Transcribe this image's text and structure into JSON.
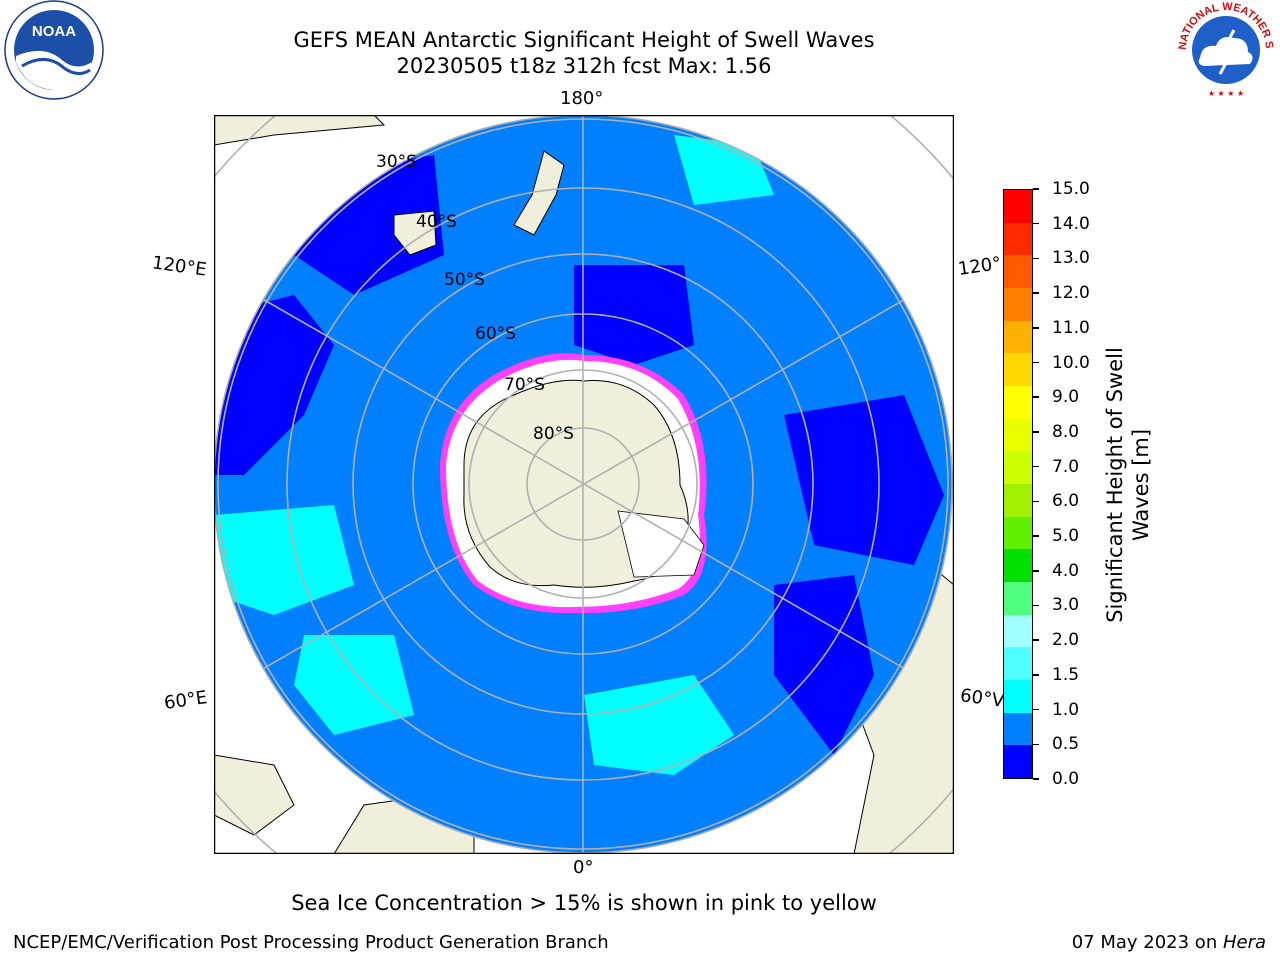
{
  "header": {
    "title_line1": "GEFS MEAN Antarctic Significant Height of Swell Waves",
    "title_line2": "20230505 t18z 312h fcst   Max: 1.56"
  },
  "map": {
    "longitude_labels": {
      "top": "180°",
      "bottom": "0°",
      "upper_left": "120°E",
      "upper_right": "120°",
      "lower_left": "60°E",
      "lower_right": "60°V"
    },
    "latitude_labels": [
      "30°S",
      "40°S",
      "50°S",
      "60°S",
      "70°S",
      "80°S"
    ],
    "colors": {
      "ocean_fill": "#0080ff",
      "land": "#efefdc",
      "ice_shelf": "#ffffff",
      "grid": "#b0b0b0",
      "sea_ice_edge": "#ff40ff",
      "low_swell": "#0000ff",
      "high_swell": "#00ffff"
    }
  },
  "colorbar": {
    "ticks": [
      "15.0",
      "14.0",
      "13.0",
      "12.0",
      "11.0",
      "10.0",
      "9.0",
      "8.0",
      "7.0",
      "6.0",
      "5.0",
      "4.0",
      "3.0",
      "2.0",
      "1.5",
      "1.0",
      "0.5",
      "0.0"
    ],
    "segment_colors": [
      "#ff0000",
      "#ff2b00",
      "#ff5a00",
      "#ff8000",
      "#ffb000",
      "#ffd800",
      "#ffff00",
      "#e8ff00",
      "#ccff00",
      "#a0f000",
      "#60f000",
      "#00e000",
      "#50ff80",
      "#a0ffff",
      "#50ffff",
      "#00ffff",
      "#0080ff",
      "#0000ff"
    ],
    "label_line1": "Significant Height of Swell",
    "label_line2": "Waves [m]"
  },
  "notes": {
    "sea_ice": "Sea Ice Concentration > 15% is shown in pink to yellow"
  },
  "footer": {
    "left": "NCEP/EMC/Verification Post Processing Product Generation Branch",
    "right_prefix": "07 May 2023 on ",
    "right_machine": "Hera"
  },
  "logos": {
    "left_text": "NOAA",
    "right_ring_text": "NATIONAL WEATHER SERVICE"
  }
}
